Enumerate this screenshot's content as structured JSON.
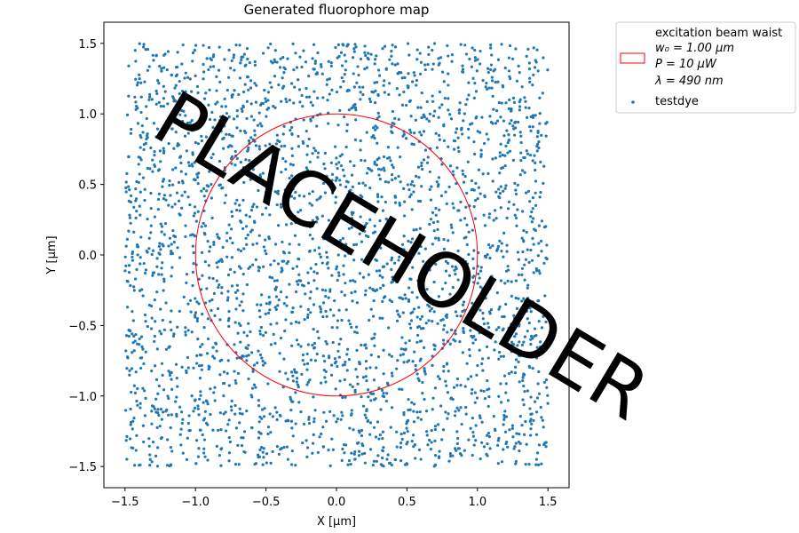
{
  "chart_data": {
    "type": "scatter",
    "title": "Generated fluorophore map",
    "xlabel": "X [μm]",
    "ylabel": "Y [μm]",
    "xlim": [
      -1.65,
      1.65
    ],
    "ylim": [
      -1.65,
      1.65
    ],
    "x_ticks": [
      -1.5,
      -1.0,
      -0.5,
      0.0,
      0.5,
      1.0,
      1.5
    ],
    "x_tick_labels": [
      "−1.5",
      "−1.0",
      "−0.5",
      "0.0",
      "0.5",
      "1.0",
      "1.5"
    ],
    "y_ticks": [
      -1.5,
      -1.0,
      -0.5,
      0.0,
      0.5,
      1.0,
      1.5
    ],
    "y_tick_labels": [
      "−1.5",
      "−1.0",
      "−0.5",
      "0.0",
      "0.5",
      "1.0",
      "1.5"
    ],
    "grid": false,
    "legend_position": "outside-top-right",
    "series": [
      {
        "name": "testdye",
        "kind": "scatter",
        "color": "#1f77b4",
        "distribution": "uniform",
        "x_range": [
          -1.5,
          1.5
        ],
        "y_range": [
          -1.5,
          1.5
        ],
        "approx_count": 3000
      }
    ],
    "circle": {
      "center": [
        0.0,
        0.0
      ],
      "radius": 1.0,
      "color": "#ff0000"
    },
    "legend": {
      "circle_lines": [
        "excitation beam waist",
        "w₀ = 1.00 μm",
        "P = 10 μW",
        "λ = 490 nm"
      ],
      "scatter_label": "testdye"
    },
    "watermark": "PLACEHOLDER"
  }
}
